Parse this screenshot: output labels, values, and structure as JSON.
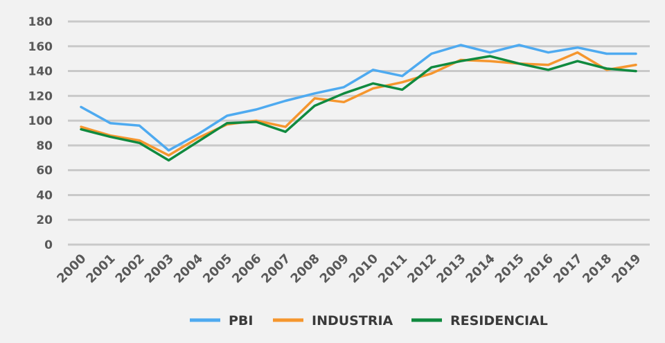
{
  "chart_data": {
    "type": "line",
    "title": "",
    "xlabel": "",
    "ylabel": "",
    "ylim": [
      0,
      180
    ],
    "ytick_step": 20,
    "grid": true,
    "legend_position": "bottom",
    "categories": [
      "2000",
      "2001",
      "2002",
      "2003",
      "2004",
      "2005",
      "2006",
      "2007",
      "2008",
      "2009",
      "2010",
      "2011",
      "2012",
      "2013",
      "2014",
      "2015",
      "2016",
      "2017",
      "2018",
      "2019"
    ],
    "yticks": [
      "0",
      "20",
      "40",
      "60",
      "80",
      "100",
      "120",
      "140",
      "160",
      "180"
    ],
    "series": [
      {
        "name": "PBI",
        "color": "#4eaaf0",
        "values": [
          111,
          98,
          96,
          76,
          89,
          104,
          109,
          116,
          122,
          127,
          141,
          136,
          154,
          161,
          155,
          161,
          155,
          159,
          154,
          154
        ]
      },
      {
        "name": "INDUSTRIA",
        "color": "#f5962e",
        "values": [
          95,
          88,
          84,
          72,
          86,
          97,
          100,
          95,
          118,
          115,
          126,
          131,
          138,
          149,
          148,
          146,
          145,
          155,
          141,
          145
        ]
      },
      {
        "name": "RESIDENCIAL",
        "color": "#108a3f",
        "values": [
          93,
          87,
          82,
          68,
          83,
          98,
          99,
          91,
          112,
          122,
          130,
          125,
          143,
          148,
          152,
          146,
          141,
          148,
          142,
          140
        ]
      }
    ]
  }
}
